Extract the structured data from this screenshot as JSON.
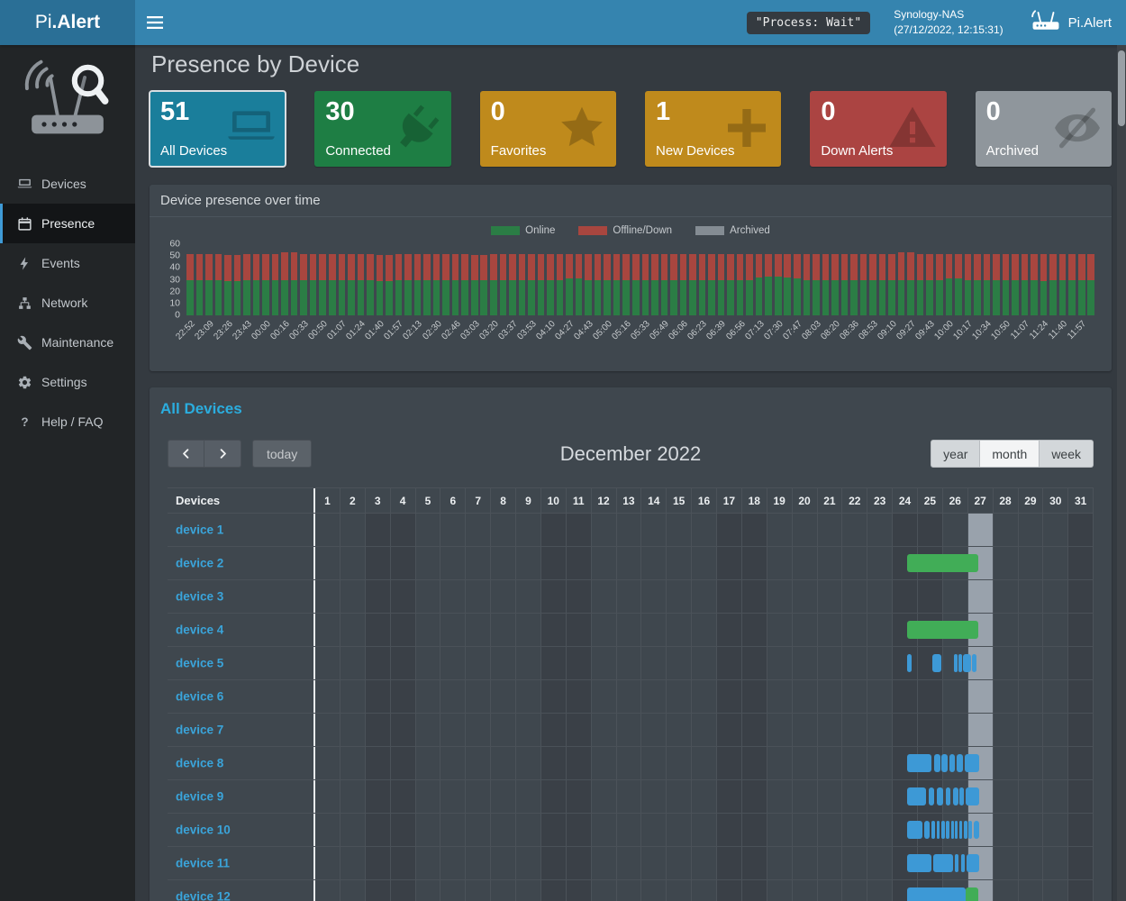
{
  "navbar": {
    "brand_prefix": "Pi",
    "brand_suffix": ".Alert",
    "process_status": "\"Process: Wait\"",
    "host_name": "Synology-NAS",
    "host_datetime": "(27/12/2022, 12:15:31)",
    "app_name": "Pi.Alert"
  },
  "sidebar": {
    "items": [
      {
        "label": "Devices",
        "icon": "laptop-icon",
        "active": false
      },
      {
        "label": "Presence",
        "icon": "calendar-icon",
        "active": true
      },
      {
        "label": "Events",
        "icon": "bolt-icon",
        "active": false
      },
      {
        "label": "Network",
        "icon": "network-icon",
        "active": false
      },
      {
        "label": "Maintenance",
        "icon": "wrench-icon",
        "active": false
      },
      {
        "label": "Settings",
        "icon": "gear-icon",
        "active": false
      },
      {
        "label": "Help / FAQ",
        "icon": "question-icon",
        "active": false
      }
    ]
  },
  "page_title": "Presence by Device",
  "cards": [
    {
      "value": "51",
      "label": "All Devices",
      "color": "#1a7e9b",
      "icon": "laptop-icon",
      "selected": true
    },
    {
      "value": "30",
      "label": "Connected",
      "color": "#1e7e44",
      "icon": "plug-icon",
      "selected": false
    },
    {
      "value": "0",
      "label": "Favorites",
      "color": "#bf8a1c",
      "icon": "star-icon",
      "selected": false
    },
    {
      "value": "1",
      "label": "New Devices",
      "color": "#bf8a1c",
      "icon": "plus-icon",
      "selected": false
    },
    {
      "value": "0",
      "label": "Down Alerts",
      "color": "#ab4442",
      "icon": "warning-icon",
      "selected": false
    },
    {
      "value": "0",
      "label": "Archived",
      "color": "#8f969c",
      "icon": "eye-slash-icon",
      "selected": false
    }
  ],
  "chart_data": {
    "type": "bar",
    "stacked": true,
    "panel_title": "Device presence over time",
    "legend": [
      {
        "label": "Online",
        "color": "#2b7d45"
      },
      {
        "label": "Offline/Down",
        "color": "#a8463f"
      },
      {
        "label": "Archived",
        "color": "#848c93"
      }
    ],
    "ylim": [
      0,
      60
    ],
    "yticks": [
      0,
      10,
      20,
      30,
      40,
      50,
      60
    ],
    "x_labels": [
      "22:52",
      "23:09",
      "23:26",
      "23:43",
      "00:00",
      "00:16",
      "00:33",
      "00:50",
      "01:07",
      "01:24",
      "01:40",
      "01:57",
      "02:13",
      "02:30",
      "02:46",
      "03:03",
      "03:20",
      "03:37",
      "03:53",
      "04:10",
      "04:27",
      "04:43",
      "05:00",
      "05:16",
      "05:33",
      "05:49",
      "06:06",
      "06:23",
      "06:39",
      "06:56",
      "07:13",
      "07:30",
      "07:47",
      "08:03",
      "08:20",
      "08:36",
      "08:53",
      "09:10",
      "09:27",
      "09:43",
      "10:00",
      "10:17",
      "10:34",
      "10:50",
      "11:07",
      "11:24",
      "11:40",
      "11:57"
    ],
    "series": [
      {
        "name": "Online",
        "color": "#2b7d45",
        "values": [
          30,
          30,
          30,
          30,
          29,
          29,
          30,
          30,
          30,
          30,
          30,
          30,
          30,
          30,
          30,
          30,
          30,
          30,
          30,
          30,
          29,
          29,
          30,
          30,
          30,
          30,
          30,
          30,
          30,
          30,
          30,
          30,
          30,
          30,
          30,
          30,
          30,
          30,
          30,
          30,
          31,
          31,
          30,
          30,
          30,
          30,
          30,
          30,
          30,
          30,
          30,
          30,
          30,
          30,
          30,
          30,
          30,
          30,
          30,
          30,
          32,
          33,
          33,
          32,
          31,
          30,
          30,
          30,
          30,
          30,
          30,
          30,
          30,
          30,
          30,
          30,
          30,
          30,
          30,
          30,
          31,
          31,
          30,
          30,
          30,
          30,
          30,
          30,
          30,
          30,
          29,
          30,
          30,
          30,
          30,
          30
        ]
      },
      {
        "name": "Offline/Down",
        "color": "#a8463f",
        "values": [
          22,
          22,
          22,
          22,
          22,
          22,
          22,
          22,
          22,
          22,
          23,
          23,
          22,
          22,
          22,
          22,
          22,
          22,
          22,
          22,
          22,
          22,
          22,
          22,
          22,
          22,
          22,
          22,
          22,
          22,
          21,
          21,
          22,
          22,
          22,
          22,
          22,
          22,
          22,
          22,
          21,
          21,
          22,
          22,
          22,
          22,
          22,
          22,
          22,
          22,
          22,
          22,
          22,
          22,
          22,
          22,
          22,
          22,
          22,
          22,
          20,
          19,
          19,
          20,
          21,
          22,
          22,
          22,
          22,
          22,
          22,
          22,
          22,
          22,
          22,
          23,
          23,
          22,
          22,
          22,
          21,
          21,
          22,
          22,
          22,
          22,
          22,
          22,
          22,
          22,
          23,
          22,
          22,
          22,
          22,
          22
        ]
      },
      {
        "name": "Archived",
        "color": "#848c93",
        "values": [
          0,
          0,
          0,
          0,
          0,
          0,
          0,
          0,
          0,
          0,
          0,
          0,
          0,
          0,
          0,
          0,
          0,
          0,
          0,
          0,
          0,
          0,
          0,
          0,
          0,
          0,
          0,
          0,
          0,
          0,
          0,
          0,
          0,
          0,
          0,
          0,
          0,
          0,
          0,
          0,
          0,
          0,
          0,
          0,
          0,
          0,
          0,
          0,
          0,
          0,
          0,
          0,
          0,
          0,
          0,
          0,
          0,
          0,
          0,
          0,
          0,
          0,
          0,
          0,
          0,
          0,
          0,
          0,
          0,
          0,
          0,
          0,
          0,
          0,
          0,
          0,
          0,
          0,
          0,
          0,
          0,
          0,
          0,
          0,
          0,
          0,
          0,
          0,
          0,
          0,
          0,
          0,
          0,
          0,
          0,
          0
        ]
      }
    ]
  },
  "calendar": {
    "section_title": "All Devices",
    "header_title": "December 2022",
    "today_button": "today",
    "view_buttons": [
      "year",
      "month",
      "week"
    ],
    "active_view": "month",
    "devices_column_header": "Devices",
    "days_in_month": 31,
    "weekend_days": [
      3,
      4,
      10,
      11,
      17,
      18,
      24,
      25,
      31
    ],
    "today_day": 27,
    "bar_colors": {
      "green": "#41ad57",
      "blue": "#3d99d6"
    },
    "devices": [
      {
        "name": "device 1",
        "segments": []
      },
      {
        "name": "device 2",
        "segments": [
          {
            "start": 24.6,
            "end": 27.42,
            "color": "green"
          }
        ]
      },
      {
        "name": "device 3",
        "segments": []
      },
      {
        "name": "device 4",
        "segments": [
          {
            "start": 24.6,
            "end": 27.42,
            "color": "green"
          }
        ]
      },
      {
        "name": "device 5",
        "segments": [
          {
            "start": 24.6,
            "end": 24.78,
            "color": "blue"
          },
          {
            "start": 25.6,
            "end": 25.94,
            "color": "blue"
          },
          {
            "start": 26.44,
            "end": 26.58,
            "color": "blue"
          },
          {
            "start": 26.63,
            "end": 26.76,
            "color": "blue"
          },
          {
            "start": 26.8,
            "end": 27.14,
            "color": "blue"
          },
          {
            "start": 27.18,
            "end": 27.34,
            "color": "blue"
          }
        ]
      },
      {
        "name": "device 6",
        "segments": []
      },
      {
        "name": "device 7",
        "segments": []
      },
      {
        "name": "device 8",
        "segments": [
          {
            "start": 24.6,
            "end": 25.55,
            "color": "blue"
          },
          {
            "start": 25.66,
            "end": 25.9,
            "color": "blue"
          },
          {
            "start": 25.96,
            "end": 26.2,
            "color": "blue"
          },
          {
            "start": 26.28,
            "end": 26.5,
            "color": "blue"
          },
          {
            "start": 26.56,
            "end": 26.82,
            "color": "blue"
          },
          {
            "start": 26.88,
            "end": 27.45,
            "color": "blue"
          }
        ]
      },
      {
        "name": "device 9",
        "segments": [
          {
            "start": 24.6,
            "end": 25.35,
            "color": "blue"
          },
          {
            "start": 25.44,
            "end": 25.68,
            "color": "blue"
          },
          {
            "start": 25.76,
            "end": 26.04,
            "color": "blue"
          },
          {
            "start": 26.14,
            "end": 26.32,
            "color": "blue"
          },
          {
            "start": 26.4,
            "end": 26.62,
            "color": "blue"
          },
          {
            "start": 26.68,
            "end": 26.86,
            "color": "blue"
          },
          {
            "start": 26.92,
            "end": 27.45,
            "color": "blue"
          }
        ]
      },
      {
        "name": "device 10",
        "segments": [
          {
            "start": 24.6,
            "end": 25.2,
            "color": "blue"
          },
          {
            "start": 25.28,
            "end": 25.5,
            "color": "blue"
          },
          {
            "start": 25.56,
            "end": 25.7,
            "color": "blue"
          },
          {
            "start": 25.76,
            "end": 25.88,
            "color": "blue"
          },
          {
            "start": 25.94,
            "end": 26.08,
            "color": "blue"
          },
          {
            "start": 26.14,
            "end": 26.28,
            "color": "blue"
          },
          {
            "start": 26.34,
            "end": 26.46,
            "color": "blue"
          },
          {
            "start": 26.5,
            "end": 26.6,
            "color": "blue"
          },
          {
            "start": 26.66,
            "end": 26.78,
            "color": "blue"
          },
          {
            "start": 26.84,
            "end": 26.98,
            "color": "blue"
          },
          {
            "start": 27.04,
            "end": 27.18,
            "color": "blue"
          },
          {
            "start": 27.24,
            "end": 27.45,
            "color": "blue"
          }
        ]
      },
      {
        "name": "device 11",
        "segments": [
          {
            "start": 24.6,
            "end": 25.55,
            "color": "blue"
          },
          {
            "start": 25.64,
            "end": 26.42,
            "color": "blue"
          },
          {
            "start": 26.5,
            "end": 26.64,
            "color": "blue"
          },
          {
            "start": 26.72,
            "end": 26.88,
            "color": "blue"
          },
          {
            "start": 26.94,
            "end": 27.45,
            "color": "blue"
          }
        ]
      },
      {
        "name": "device 12",
        "segments": [
          {
            "start": 24.6,
            "end": 26.92,
            "color": "blue"
          },
          {
            "start": 26.92,
            "end": 27.42,
            "color": "green"
          }
        ]
      }
    ]
  }
}
